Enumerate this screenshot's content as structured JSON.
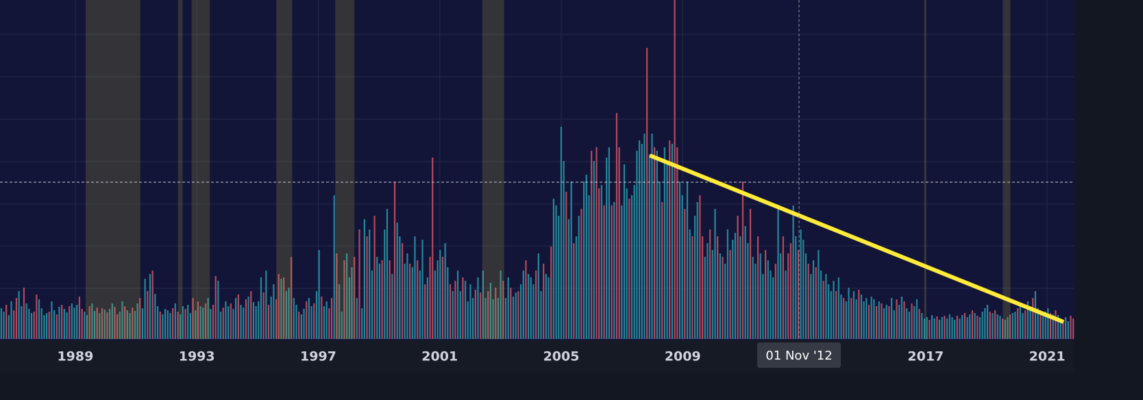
{
  "chart_data": {
    "type": "bar",
    "xlim": [
      1986.52,
      2021.9
    ],
    "ylim": [
      0,
      495
    ],
    "xticks": [
      1989,
      1993,
      1997,
      2001,
      2005,
      2009,
      2017,
      2021
    ],
    "grid": true,
    "colors": {
      "up": "#25889a",
      "down": "#b44a5f",
      "band": "#b8ad3c",
      "trend": "#ffeb3b"
    },
    "values": [
      45,
      40,
      50,
      35,
      55,
      42,
      60,
      70,
      48,
      75,
      52,
      44,
      38,
      40,
      65,
      58,
      45,
      35,
      38,
      40,
      55,
      42,
      36,
      47,
      50,
      44,
      39,
      48,
      52,
      46,
      50,
      62,
      44,
      40,
      35,
      48,
      52,
      41,
      46,
      38,
      45,
      43,
      39,
      44,
      52,
      47,
      36,
      40,
      55,
      48,
      42,
      38,
      46,
      41,
      52,
      60,
      45,
      88,
      70,
      95,
      100,
      66,
      48,
      40,
      36,
      44,
      42,
      38,
      45,
      52,
      40,
      36,
      48,
      44,
      50,
      38,
      60,
      42,
      55,
      48,
      46,
      52,
      60,
      44,
      50,
      92,
      85,
      40,
      46,
      55,
      48,
      52,
      44,
      60,
      65,
      50,
      46,
      58,
      62,
      70,
      54,
      48,
      55,
      90,
      68,
      100,
      50,
      62,
      80,
      58,
      95,
      88,
      90,
      70,
      75,
      120,
      60,
      50,
      40,
      36,
      44,
      55,
      60,
      48,
      52,
      70,
      130,
      62,
      48,
      55,
      45,
      60,
      210,
      125,
      80,
      40,
      115,
      125,
      90,
      105,
      120,
      60,
      160,
      45,
      175,
      150,
      160,
      100,
      180,
      120,
      110,
      115,
      160,
      190,
      115,
      95,
      230,
      170,
      150,
      140,
      110,
      125,
      110,
      105,
      150,
      115,
      100,
      145,
      80,
      90,
      120,
      265,
      100,
      115,
      130,
      120,
      140,
      105,
      80,
      70,
      85,
      100,
      70,
      90,
      85,
      55,
      80,
      60,
      72,
      90,
      68,
      100,
      60,
      70,
      82,
      58,
      75,
      60,
      100,
      85,
      60,
      90,
      75,
      62,
      68,
      70,
      80,
      100,
      115,
      95,
      90,
      80,
      100,
      125,
      70,
      110,
      95,
      90,
      135,
      205,
      195,
      180,
      310,
      260,
      215,
      175,
      230,
      140,
      150,
      180,
      190,
      230,
      240,
      210,
      275,
      260,
      280,
      220,
      225,
      195,
      265,
      280,
      195,
      200,
      330,
      280,
      195,
      255,
      220,
      205,
      210,
      225,
      275,
      290,
      285,
      300,
      425,
      270,
      300,
      280,
      275,
      230,
      200,
      280,
      260,
      290,
      285,
      495,
      280,
      230,
      210,
      190,
      230,
      160,
      150,
      180,
      200,
      210,
      150,
      120,
      140,
      160,
      130,
      190,
      150,
      125,
      120,
      110,
      160,
      130,
      145,
      155,
      180,
      150,
      230,
      165,
      140,
      190,
      120,
      110,
      150,
      125,
      95,
      130,
      115,
      100,
      90,
      110,
      195,
      125,
      150,
      100,
      125,
      140,
      195,
      150,
      130,
      160,
      145,
      125,
      110,
      95,
      115,
      105,
      130,
      100,
      85,
      95,
      80,
      70,
      85,
      70,
      90,
      65,
      60,
      55,
      75,
      60,
      70,
      58,
      72,
      65,
      55,
      60,
      50,
      62,
      58,
      48,
      55,
      52,
      45,
      50,
      48,
      60,
      42,
      58,
      50,
      62,
      55,
      45,
      40,
      52,
      48,
      58,
      44,
      38,
      30,
      32,
      28,
      35,
      30,
      33,
      28,
      32,
      34,
      30,
      36,
      32,
      28,
      34,
      30,
      35,
      38,
      32,
      36,
      42,
      38,
      34,
      32,
      40,
      45,
      50,
      40,
      38,
      42,
      36,
      34,
      30,
      28,
      32,
      36,
      38,
      40,
      45,
      50,
      38,
      42,
      55,
      48,
      60,
      70,
      45,
      40,
      35,
      40,
      45,
      38,
      36,
      42,
      35,
      30,
      28,
      32,
      26,
      34,
      30
    ],
    "up": [
      1,
      1,
      0,
      1,
      1,
      0,
      0,
      1,
      1,
      0,
      1,
      1,
      1,
      0,
      0,
      1,
      1,
      1,
      1,
      0,
      1,
      1,
      0,
      1,
      0,
      1,
      1,
      0,
      1,
      1,
      1,
      0,
      0,
      1,
      1,
      0,
      1,
      1,
      0,
      1,
      0,
      1,
      0,
      1,
      1,
      0,
      0,
      1,
      1,
      0,
      1,
      1,
      0,
      1,
      1,
      0,
      1,
      1,
      0,
      1,
      0,
      1,
      1,
      0,
      1,
      1,
      1,
      1,
      0,
      1,
      0,
      1,
      1,
      0,
      1,
      1,
      0,
      1,
      0,
      1,
      1,
      0,
      1,
      1,
      0,
      0,
      1,
      1,
      0,
      1,
      1,
      0,
      1,
      1,
      0,
      1,
      1,
      0,
      1,
      0,
      1,
      1,
      1,
      1,
      0,
      1,
      0,
      1,
      1,
      0,
      0,
      1,
      0,
      1,
      1,
      0,
      1,
      1,
      0,
      1,
      1,
      0,
      1,
      1,
      0,
      1,
      1,
      0,
      1,
      1,
      0,
      0,
      1,
      0,
      1,
      1,
      0,
      1,
      1,
      1,
      0,
      1,
      0,
      1,
      1,
      0,
      1,
      1,
      0,
      1,
      1,
      0,
      1,
      1,
      0,
      1,
      0,
      1,
      1,
      0,
      1,
      1,
      0,
      1,
      1,
      0,
      1,
      1,
      0,
      1,
      0,
      0,
      1,
      1,
      1,
      0,
      1,
      1,
      0,
      1,
      0,
      1,
      1,
      0,
      1,
      1,
      1,
      1,
      0,
      1,
      0,
      1,
      1,
      0,
      1,
      1,
      0,
      1,
      1,
      0,
      1,
      1,
      0,
      1,
      1,
      0,
      1,
      1,
      0,
      1,
      1,
      1,
      0,
      1,
      1,
      0,
      1,
      1,
      0,
      1,
      1,
      1,
      1,
      1,
      0,
      1,
      1,
      0,
      1,
      1,
      0,
      1,
      1,
      1,
      0,
      1,
      0,
      0,
      1,
      0,
      1,
      1,
      0,
      1,
      0,
      0,
      1,
      1,
      1,
      0,
      1,
      1,
      1,
      1,
      1,
      1,
      0,
      1,
      1,
      0,
      1,
      1,
      0,
      1,
      1,
      0,
      1,
      0,
      0,
      1,
      1,
      0,
      1,
      1,
      0,
      1,
      1,
      0,
      0,
      1,
      1,
      0,
      1,
      1,
      0,
      1,
      0,
      1,
      1,
      0,
      1,
      1,
      0,
      1,
      0,
      1,
      1,
      0,
      1,
      1,
      0,
      1,
      1,
      0,
      1,
      1,
      1,
      0,
      1,
      1,
      0,
      1,
      0,
      0,
      1,
      1,
      0,
      1,
      1,
      1,
      0,
      1,
      1,
      0,
      1,
      1,
      0,
      1,
      1,
      1,
      1,
      0,
      1,
      1,
      0,
      1,
      1,
      0,
      1,
      1,
      0,
      1,
      1,
      1,
      0,
      1,
      1,
      0,
      1,
      0,
      1,
      1,
      0,
      1,
      1,
      0,
      1,
      1,
      0,
      1,
      1,
      0,
      1,
      1,
      0,
      1,
      1,
      1,
      0,
      1,
      1,
      0,
      1,
      1,
      0,
      1,
      1,
      1,
      1,
      0,
      1,
      1,
      0,
      1,
      1,
      0,
      1,
      0,
      1,
      1,
      1,
      1,
      0,
      1,
      0,
      1,
      1,
      0,
      1,
      1,
      0,
      1,
      1,
      0,
      1,
      1,
      0,
      1,
      1,
      0,
      1,
      1,
      0,
      1,
      1,
      1,
      0,
      1,
      0,
      1,
      1,
      0,
      1,
      1,
      0,
      0
    ],
    "shaded_ranges": [
      [
        1989.34,
        1991.14
      ],
      [
        1992.38,
        1992.53
      ],
      [
        1992.83,
        1993.43
      ],
      [
        1995.62,
        1996.14
      ],
      [
        1997.56,
        1998.19
      ],
      [
        2002.4,
        2003.12
      ],
      [
        2016.95,
        2017.02
      ],
      [
        2019.54,
        2019.79
      ]
    ],
    "trend_line": {
      "x": [
        2007.92,
        2021.54
      ],
      "y": [
        268,
        25
      ]
    },
    "horizontal_crosshair": 229,
    "crosshair": {
      "x": 2012.83,
      "label": "01 Nov '12"
    }
  }
}
